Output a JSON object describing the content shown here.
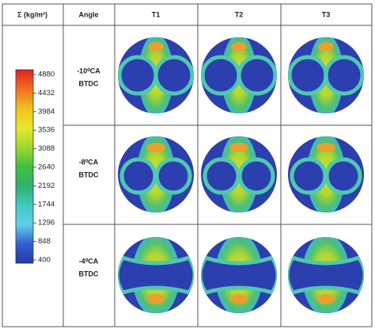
{
  "legend": {
    "title": "Σ (kg/m²)",
    "ticks": [
      4880,
      4432,
      3984,
      3536,
      3088,
      2640,
      2192,
      1744,
      1296,
      848,
      400
    ]
  },
  "table": {
    "header": [
      "Angle",
      "T1",
      "T2",
      "T3"
    ],
    "rows": [
      {
        "angle": [
          "-10⁰CA",
          "BTDC"
        ]
      },
      {
        "angle": [
          "-8⁰CA",
          "BTDC"
        ]
      },
      {
        "angle": [
          "-4⁰CA",
          "BTDC"
        ]
      }
    ]
  }
}
